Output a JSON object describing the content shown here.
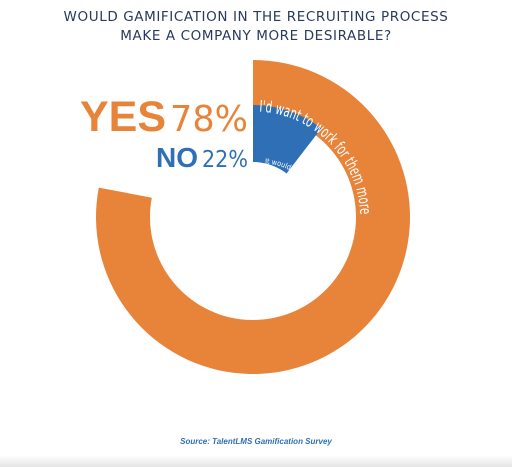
{
  "title_lines": [
    "WOULD GAMIFICATION IN THE RECRUITING PROCESS",
    "MAKE A COMPANY MORE DESIRABLE?"
  ],
  "source": "Source: TalentLMS Gamification Survey",
  "colors": {
    "yes": "#e8843a",
    "no": "#2f6fb6",
    "title": "#2a3a5c"
  },
  "chart_data": {
    "type": "pie",
    "title": "WOULD GAMIFICATION IN THE RECRUITING PROCESS MAKE A COMPANY MORE DESIRABLE?",
    "unit": "%",
    "slices": [
      {
        "key": "YES",
        "value": 78,
        "value_label": "78%",
        "description": "I'd want to work for them more",
        "color": "#e8843a"
      },
      {
        "key": "NO",
        "value": 22,
        "value_label": "22%",
        "description": "It would make no difference",
        "color": "#2f6fb6"
      }
    ]
  }
}
